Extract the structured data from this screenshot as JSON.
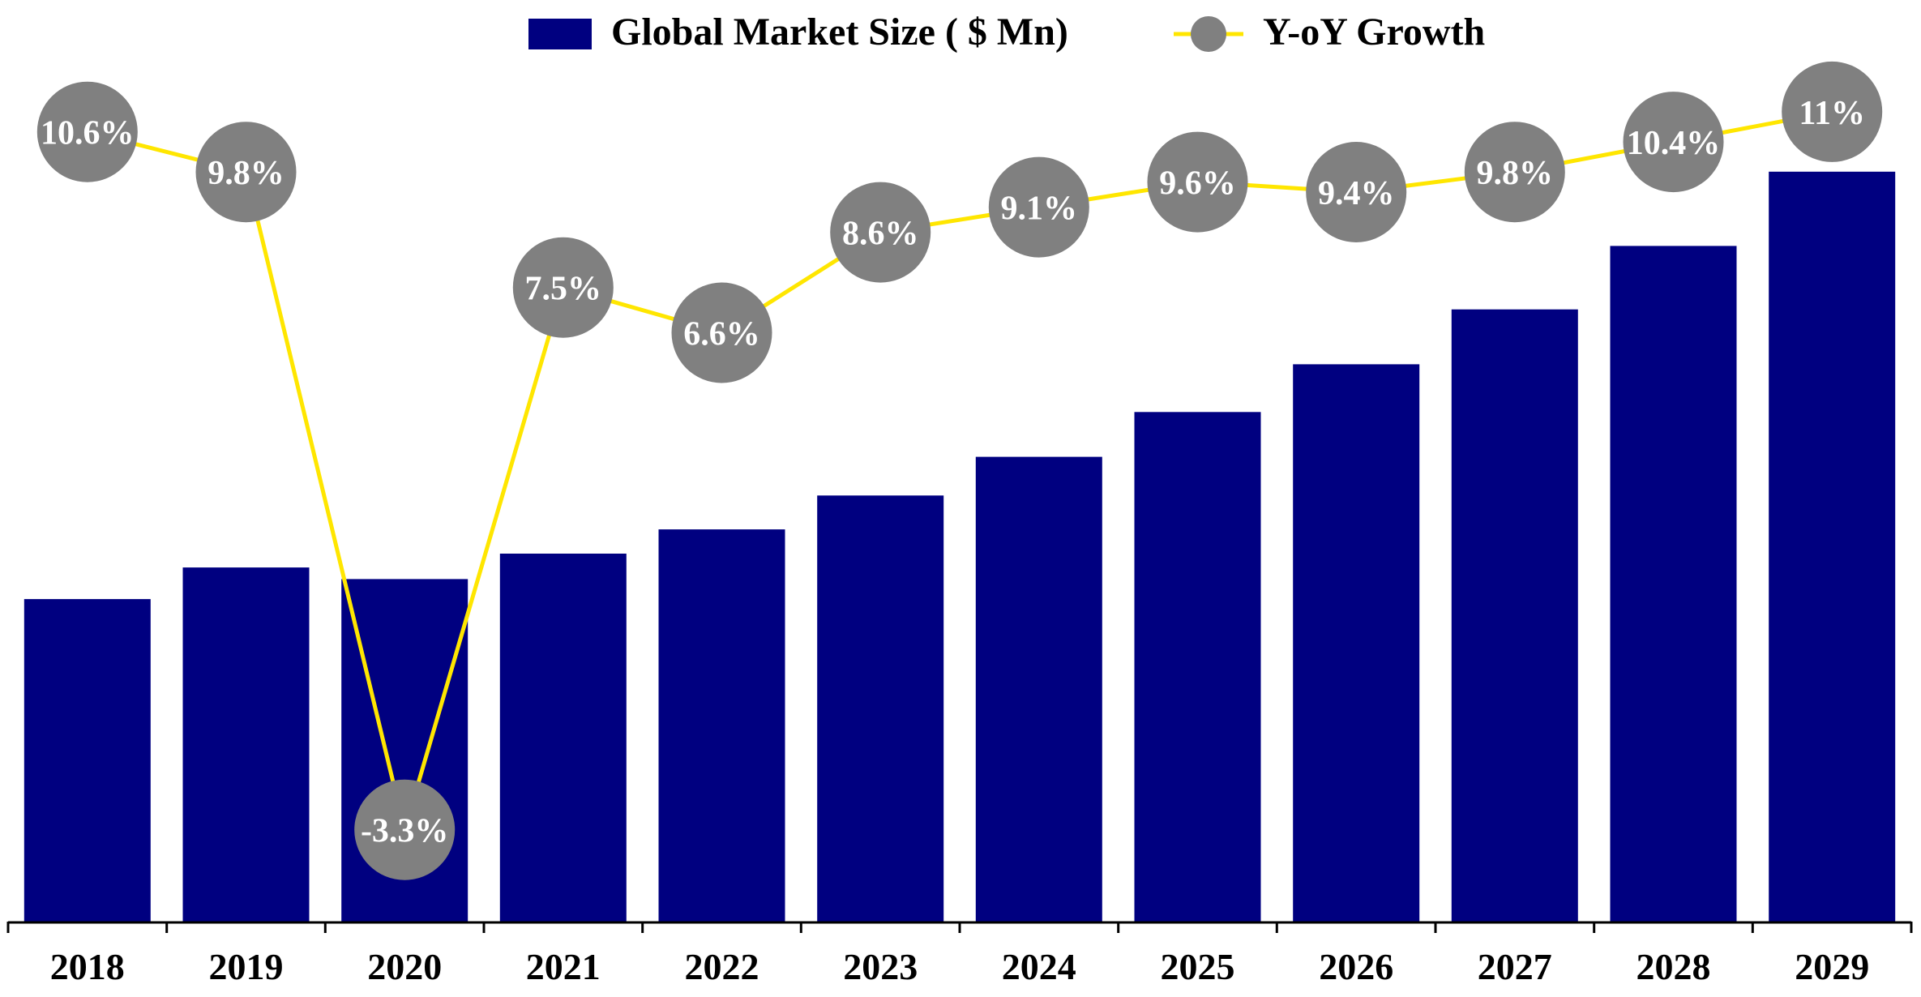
{
  "colors": {
    "bar": "#000080",
    "line": "#FFE600",
    "marker": "#808080",
    "marker_text": "#FFFFFF",
    "axis": "#000000",
    "background": "#FFFFFF"
  },
  "chart_data": {
    "type": "bar+line",
    "title": "",
    "xlabel": "",
    "ylabel": "",
    "legend_position": "top-center",
    "grid": false,
    "categories": [
      "2018",
      "2019",
      "2020",
      "2021",
      "2022",
      "2023",
      "2024",
      "2025",
      "2026",
      "2027",
      "2028",
      "2029"
    ],
    "series": [
      {
        "name": "Global Market Size ( $ Mn)",
        "type": "bar",
        "axis": "primary",
        "values": [
          100,
          109.8,
          106.2,
          114.1,
          121.6,
          132.1,
          144.1,
          158.0,
          172.8,
          189.8,
          209.5,
          232.5
        ]
      },
      {
        "name": "Y-oY Growth",
        "type": "line",
        "axis": "secondary",
        "unit": "%",
        "values": [
          10.6,
          9.8,
          -3.3,
          7.5,
          6.6,
          8.6,
          9.1,
          9.6,
          9.4,
          9.8,
          10.4,
          11
        ],
        "labels": [
          "10.6%",
          "9.8%",
          "-3.3%",
          "7.5%",
          "6.6%",
          "8.6%",
          "9.1%",
          "9.6%",
          "9.4%",
          "9.8%",
          "10.4%",
          "11%"
        ]
      }
    ],
    "y_primary_range": [
      0,
      270
    ],
    "y_secondary_range": [
      -4.5,
      12.5
    ]
  }
}
